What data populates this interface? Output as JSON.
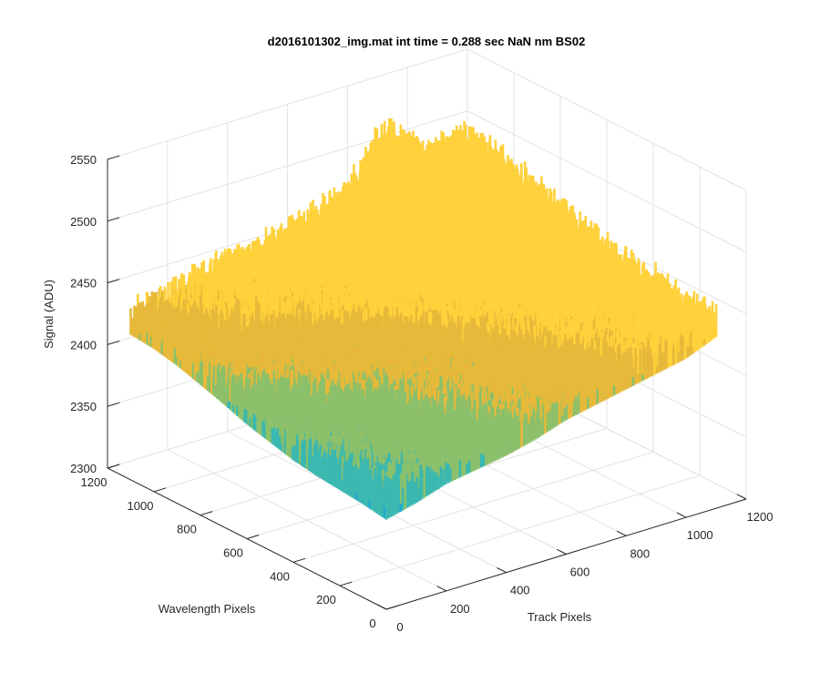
{
  "chart_data": {
    "type": "surface",
    "title": "d2016101302_img.mat int time = 0.288 sec  NaN nm BS02",
    "xlabel": "Track Pixels",
    "ylabel": "Wavelength Pixels",
    "zlabel": "Signal (ADU)",
    "xlim": [
      0,
      1200
    ],
    "ylim": [
      0,
      1200
    ],
    "zlim": [
      2300,
      2550
    ],
    "xticks": [
      "0",
      "200",
      "400",
      "600",
      "800",
      "1000",
      "1200"
    ],
    "yticks": [
      "0",
      "200",
      "400",
      "600",
      "800",
      "1000",
      "1200"
    ],
    "zticks": [
      "2300",
      "2350",
      "2400",
      "2450",
      "2500",
      "2550"
    ],
    "grid": true,
    "colormap": [
      "#0072bd",
      "#1aa7d4",
      "#3bb8b0",
      "#8cc06a",
      "#e6b93a",
      "#ffd13a"
    ],
    "surface_profile": {
      "x_track": [
        0,
        100,
        200,
        300,
        400,
        500,
        600,
        700,
        800,
        900,
        1000,
        1100
      ],
      "y_wavelength": [
        0,
        100,
        200,
        300,
        400,
        500,
        600,
        700,
        800,
        900,
        1000,
        1100
      ],
      "z_signal_by_track": [
        2364,
        2370,
        2378,
        2382,
        2386,
        2392,
        2400,
        2405,
        2410,
        2415,
        2420,
        2430
      ],
      "z_signal_by_wavelength": [
        2385,
        2388,
        2390,
        2392,
        2395,
        2400,
        2405,
        2412,
        2418,
        2424,
        2428,
        2430
      ],
      "peak": {
        "x": 850,
        "y": 1100,
        "z": 2545
      },
      "noise_amplitude": 25
    }
  }
}
